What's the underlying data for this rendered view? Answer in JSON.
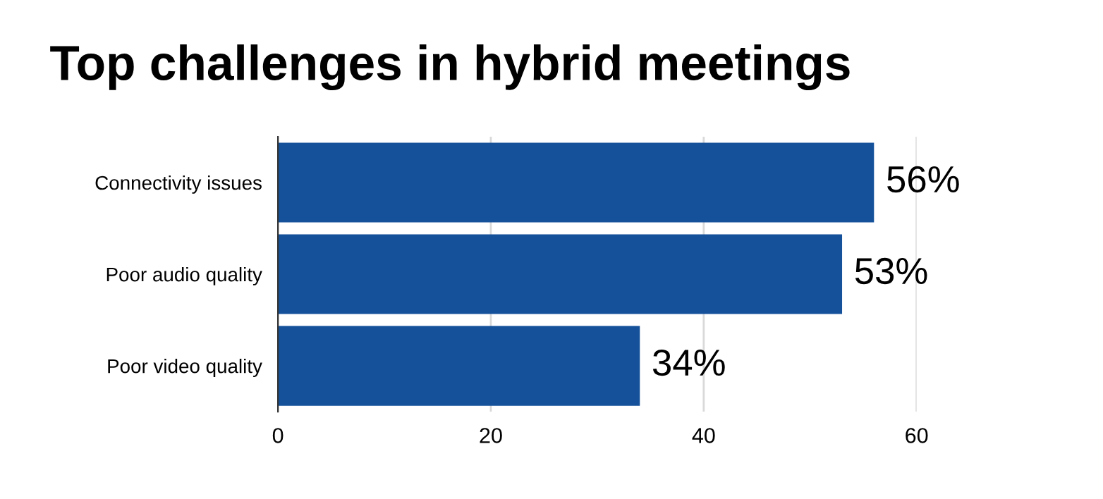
{
  "chart_data": {
    "type": "bar",
    "orientation": "horizontal",
    "title": "Top challenges in hybrid meetings",
    "categories": [
      "Connectivity issues",
      "Poor audio quality",
      "Poor video quality"
    ],
    "values": [
      56,
      53,
      34
    ],
    "color": "#14519a",
    "value_labels": [
      "56%",
      "53%",
      "34%"
    ],
    "xlim": [
      0,
      60
    ],
    "xticks": [
      0,
      20,
      40,
      60
    ],
    "grid": "x",
    "legend": false
  }
}
